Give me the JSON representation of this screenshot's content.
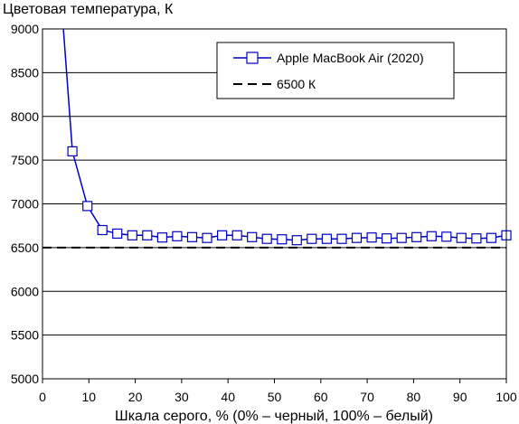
{
  "chart_data": {
    "type": "line",
    "title": "Цветовая температура, К",
    "xlabel": "Шкала серого, % (0% – черный, 100% – белый)",
    "ylabel": "",
    "xlim": [
      0,
      100
    ],
    "ylim": [
      5000,
      9000
    ],
    "xticks": [
      0,
      10,
      20,
      30,
      40,
      50,
      60,
      70,
      80,
      90,
      100
    ],
    "yticks": [
      5000,
      5500,
      6000,
      6500,
      7000,
      7500,
      8000,
      8500,
      9000
    ],
    "grid": {
      "horizontal": true,
      "vertical": false
    },
    "legend": {
      "position": "top-right"
    },
    "series": [
      {
        "name": "Apple MacBook Air (2020)",
        "color": "#0000c0",
        "marker": "square",
        "x": [
          6.45,
          9.68,
          12.9,
          16.13,
          19.35,
          22.58,
          25.81,
          29.03,
          32.26,
          35.48,
          38.71,
          41.94,
          45.16,
          48.39,
          51.61,
          54.84,
          58.06,
          61.29,
          64.52,
          67.74,
          70.97,
          74.19,
          77.42,
          80.65,
          83.87,
          87.1,
          90.32,
          93.55,
          96.77,
          100
        ],
        "y": [
          7600,
          6975,
          6700,
          6660,
          6640,
          6640,
          6615,
          6630,
          6620,
          6610,
          6640,
          6640,
          6620,
          6600,
          6595,
          6585,
          6600,
          6600,
          6600,
          6610,
          6615,
          6605,
          6610,
          6620,
          6630,
          6625,
          6610,
          6605,
          6610,
          6640
        ],
        "off_chart_start": {
          "x": 4.5,
          "y": 9000
        }
      },
      {
        "name": "6500 К",
        "color": "#000000",
        "style": "dashed",
        "x": [
          0,
          100
        ],
        "y": [
          6500,
          6500
        ]
      }
    ]
  }
}
